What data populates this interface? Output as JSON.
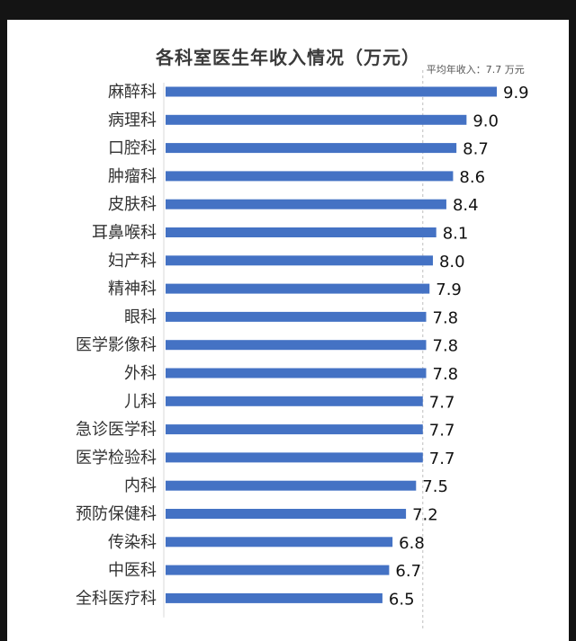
{
  "chart_data": {
    "type": "bar",
    "orientation": "horizontal",
    "title": "各科室医生年收入情况（万元）",
    "categories": [
      "麻醉科",
      "病理科",
      "口腔科",
      "肿瘤科",
      "皮肤科",
      "耳鼻喉科",
      "妇产科",
      "精神科",
      "眼科",
      "医学影像科",
      "外科",
      "儿科",
      "急诊医学科",
      "医学检验科",
      "内科",
      "预防保健科",
      "传染科",
      "中医科",
      "全科医疗科"
    ],
    "values": [
      9.9,
      9.0,
      8.7,
      8.6,
      8.4,
      8.1,
      8.0,
      7.9,
      7.8,
      7.8,
      7.8,
      7.7,
      7.7,
      7.7,
      7.5,
      7.2,
      6.8,
      6.7,
      6.5
    ],
    "value_labels": [
      "9.9",
      "9.0",
      "8.7",
      "8.6",
      "8.4",
      "8.1",
      "8.0",
      "7.9",
      "7.8",
      "7.8",
      "7.8",
      "7.7",
      "7.7",
      "7.7",
      "7.5",
      "7.2",
      "6.8",
      "6.7",
      "6.5"
    ],
    "xlim": [
      0,
      9.9
    ],
    "average": {
      "value": 7.7,
      "label": "平均年收入：7.7 万元"
    },
    "bar_color": "#4472C4",
    "grid": false,
    "legend": "none"
  }
}
